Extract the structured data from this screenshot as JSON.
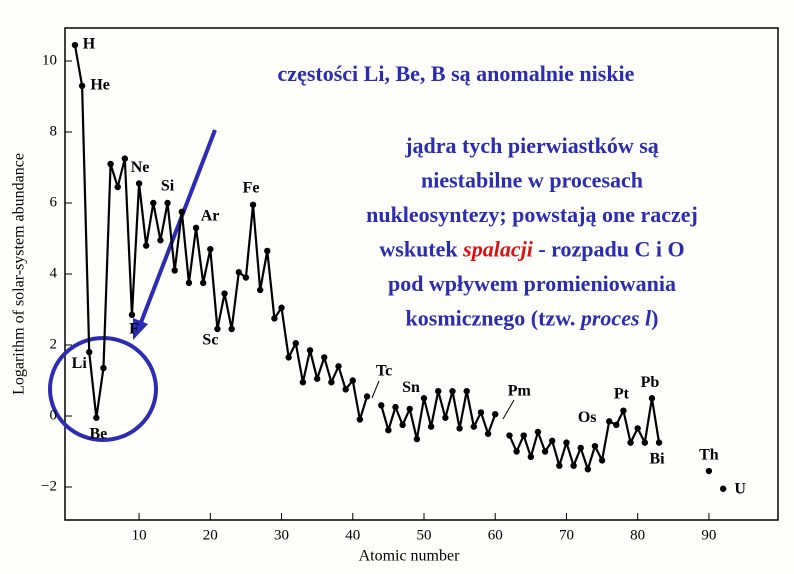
{
  "chart_data": {
    "type": "line",
    "x_label": "Atomic number",
    "y_label": "Logarithm of solar-system abundance",
    "x": [
      1,
      2,
      3,
      4,
      5,
      6,
      7,
      8,
      9,
      10,
      11,
      12,
      13,
      14,
      15,
      16,
      17,
      18,
      19,
      20,
      21,
      22,
      23,
      24,
      25,
      26,
      27,
      28,
      29,
      30,
      31,
      32,
      33,
      34,
      35,
      36,
      37,
      38,
      39,
      40,
      41,
      42,
      43,
      44,
      45,
      46,
      47,
      48,
      49,
      50,
      51,
      52,
      53,
      54,
      55,
      56,
      57,
      58,
      59,
      60,
      61,
      62,
      63,
      64,
      65,
      66,
      67,
      68,
      69,
      70,
      71,
      72,
      73,
      74,
      75,
      76,
      77,
      78,
      79,
      80,
      81,
      82,
      83,
      84,
      85,
      86,
      87,
      88,
      89,
      90,
      91,
      92
    ],
    "series": [
      {
        "color": "#000000",
        "values": [
          10.45,
          9.3,
          1.8,
          -0.05,
          1.35,
          7.1,
          6.45,
          7.25,
          2.85,
          6.55,
          4.8,
          6.0,
          4.95,
          6.0,
          4.1,
          5.75,
          3.75,
          5.3,
          3.75,
          4.7,
          2.45,
          3.45,
          2.45,
          4.05,
          3.9,
          5.95,
          3.55,
          4.65,
          2.75,
          3.05,
          1.65,
          2.05,
          0.95,
          1.85,
          1.05,
          1.65,
          0.95,
          1.4,
          0.75,
          1.0,
          -0.1,
          0.55,
          null,
          0.3,
          -0.4,
          0.25,
          -0.25,
          0.2,
          -0.65,
          0.5,
          -0.3,
          0.7,
          -0.05,
          0.7,
          -0.35,
          0.7,
          -0.3,
          0.1,
          -0.5,
          0.05,
          null,
          -0.55,
          -1.0,
          -0.55,
          -1.15,
          -0.45,
          -1.0,
          -0.7,
          -1.4,
          -0.75,
          -1.4,
          -0.9,
          -1.5,
          -0.85,
          -1.25,
          -0.15,
          -0.25,
          0.15,
          -0.75,
          -0.35,
          -0.75,
          0.5,
          -0.75,
          null,
          null,
          null,
          null,
          null,
          null,
          -1.55,
          null,
          -2.05
        ]
      }
    ],
    "point_labels": [
      "H",
      "He",
      "Li",
      "Be",
      null,
      null,
      null,
      null,
      "F",
      "Ne",
      null,
      null,
      null,
      "Si",
      null,
      null,
      null,
      "Ar",
      null,
      null,
      "Sc",
      null,
      null,
      null,
      null,
      "Fe",
      null,
      null,
      null,
      null,
      null,
      null,
      null,
      null,
      null,
      null,
      null,
      null,
      null,
      null,
      null,
      null,
      "Tc",
      null,
      null,
      null,
      null,
      null,
      null,
      "Sn",
      null,
      null,
      null,
      null,
      null,
      null,
      null,
      null,
      null,
      null,
      "Pm",
      null,
      null,
      null,
      null,
      null,
      null,
      null,
      null,
      null,
      null,
      null,
      null,
      null,
      null,
      "Os",
      null,
      "Pt",
      null,
      null,
      null,
      "Pb",
      "Bi",
      null,
      null,
      null,
      null,
      null,
      null,
      "Th",
      null,
      "U"
    ],
    "xlim": [
      -0.4,
      99.7
    ],
    "ylim": [
      -2.93,
      10.93
    ],
    "xticks": [
      10,
      20,
      30,
      40,
      50,
      60,
      70,
      80,
      90
    ],
    "yticks": [
      {
        "value": -2,
        "label": "−2"
      },
      0,
      2,
      4,
      6,
      8,
      10
    ],
    "annotation_color": "#2b2bb5",
    "headline": "częstości Li, Be, B są anomalnie niskie",
    "explanation_lines": [
      [
        "jądra tych pierwiastków są"
      ],
      [
        "niestabilne w procesach"
      ],
      [
        "nukleosyntezy; powstają one raczej"
      ],
      [
        "wskutek ",
        "spalacji",
        " - rozpadu C i O"
      ],
      [
        "pod wpływem promieniowania"
      ],
      [
        "kosmicznego (tzw. ",
        "proces l",
        ")"
      ]
    ]
  }
}
